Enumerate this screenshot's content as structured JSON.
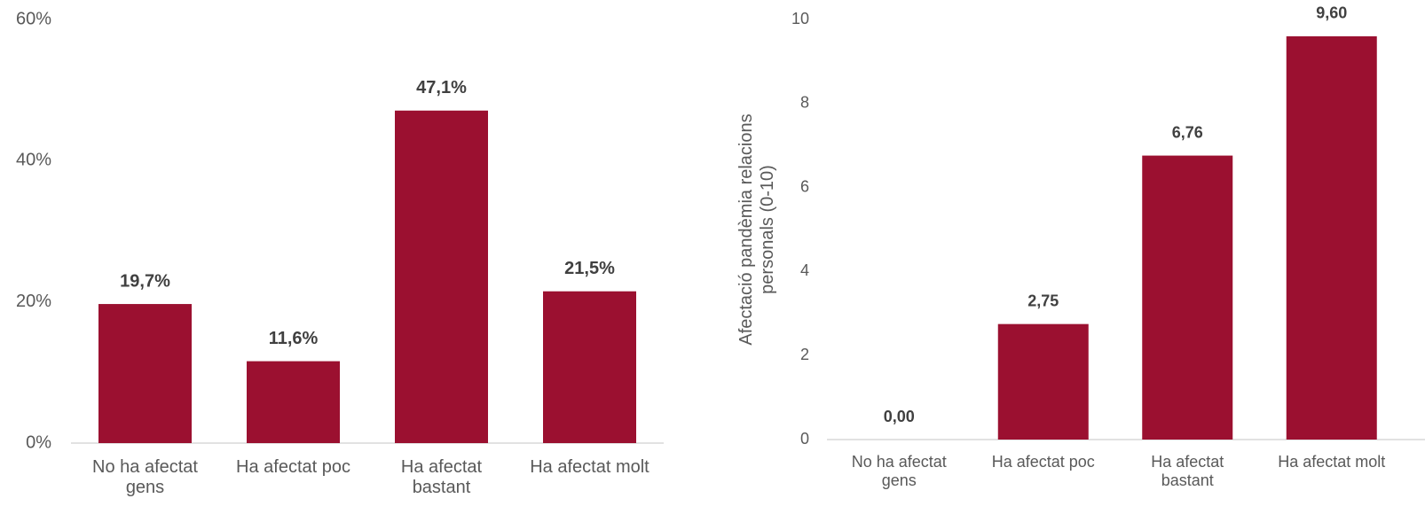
{
  "chart_data": [
    {
      "type": "bar",
      "categories": [
        "No ha afectat gens",
        "Ha afectat poc",
        "Ha afectat bastant",
        "Ha afectat molt"
      ],
      "values": [
        19.7,
        11.6,
        47.1,
        21.5
      ],
      "value_labels": [
        "19,7%",
        "11,6%",
        "47,1%",
        "21,5%"
      ],
      "color": "#9b1030",
      "ylim": [
        0,
        60
      ],
      "yticks": [
        {
          "value": 0,
          "label": "0%"
        },
        {
          "value": 20,
          "label": "20%"
        },
        {
          "value": 40,
          "label": "40%"
        },
        {
          "value": 60,
          "label": "60%"
        }
      ],
      "grid": false
    },
    {
      "type": "bar",
      "categories": [
        "No ha afectat gens",
        "Ha afectat poc",
        "Ha afectat bastant",
        "Ha afectat molt"
      ],
      "values": [
        0,
        2.75,
        6.76,
        9.6
      ],
      "value_labels": [
        "0,00",
        "2,75",
        "6,76",
        "9,60"
      ],
      "color": "#9b1030",
      "ylabel": "Afectació pandèmia relacions personals (0-10)",
      "ylim": [
        0,
        10
      ],
      "yticks": [
        0,
        2,
        4,
        6,
        8,
        10
      ],
      "grid": false
    }
  ]
}
